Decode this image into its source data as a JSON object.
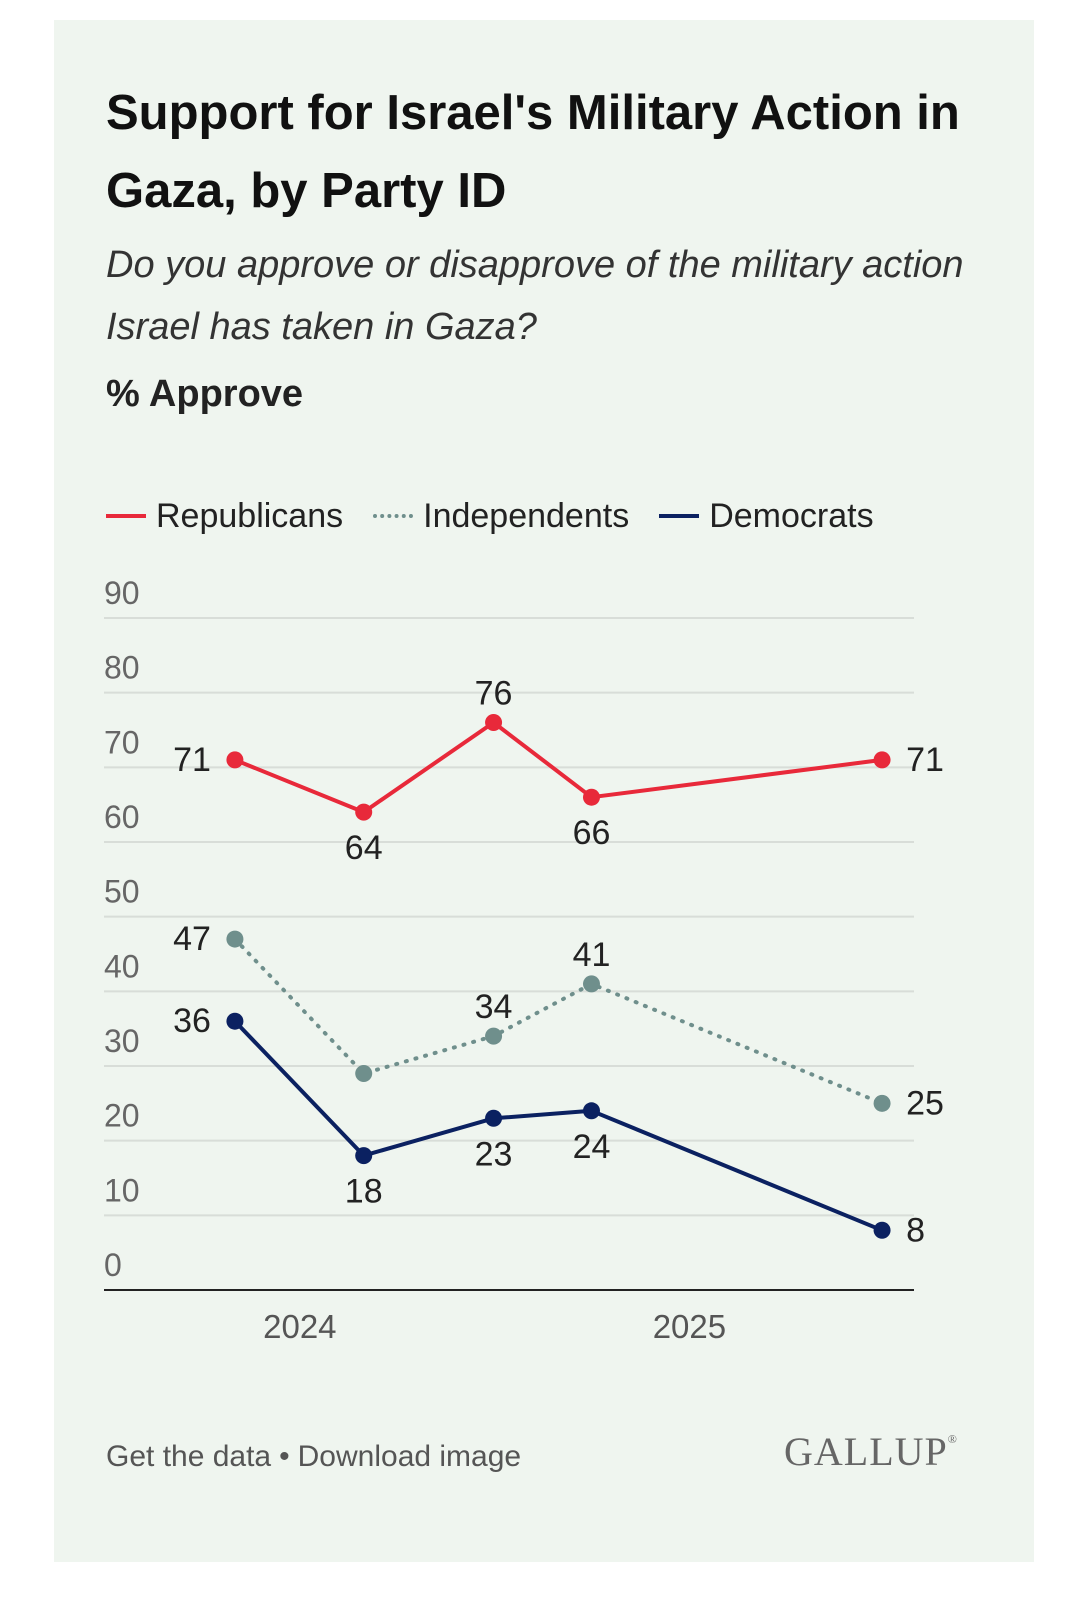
{
  "title": "Support for Israel's Military Action in Gaza, by Party ID",
  "question": "Do you approve or disapprove of the military action Israel has taken in Gaza?",
  "measure": "% Approve",
  "footer": {
    "get_data": "Get the data",
    "separator": "•",
    "download": "Download image"
  },
  "logo": {
    "text": "GALLUP",
    "mark": "®"
  },
  "colors": {
    "background": "#eff5ef",
    "republicans": "#e8293a",
    "independents": "#6f8f8c",
    "democrats": "#0b2161",
    "grid": "#d8ddd8"
  },
  "chart_data": {
    "type": "line",
    "title": "Support for Israel's Military Action in Gaza, by Party ID",
    "subtitle": "Do you approve or disapprove of the military action Israel has taken in Gaza?",
    "ylabel": "% Approve",
    "ylim": [
      0,
      90
    ],
    "yticks": [
      0,
      10,
      20,
      30,
      40,
      50,
      60,
      70,
      80,
      90
    ],
    "xlim": [
      "2023-07-01",
      "2025-07-31"
    ],
    "xtick_labels": [
      {
        "label": "2024",
        "date": "2024-01-01"
      },
      {
        "label": "2025",
        "date": "2025-01-01"
      }
    ],
    "grid": true,
    "legend_position": "top",
    "series": [
      {
        "name": "Republicans",
        "style": "solid",
        "color": "#e8293a",
        "points": [
          {
            "date": "2023-11-01",
            "value": 71
          },
          {
            "date": "2024-03-01",
            "value": 64
          },
          {
            "date": "2024-07-01",
            "value": 76
          },
          {
            "date": "2024-10-01",
            "value": 66
          },
          {
            "date": "2025-07-01",
            "value": 71
          }
        ]
      },
      {
        "name": "Independents",
        "style": "dotted",
        "color": "#6f8f8c",
        "points": [
          {
            "date": "2023-11-01",
            "value": 47
          },
          {
            "date": "2024-03-01",
            "value": 29
          },
          {
            "date": "2024-07-01",
            "value": 34
          },
          {
            "date": "2024-10-01",
            "value": 41
          },
          {
            "date": "2025-07-01",
            "value": 25
          }
        ]
      },
      {
        "name": "Democrats",
        "style": "solid",
        "color": "#0b2161",
        "points": [
          {
            "date": "2023-11-01",
            "value": 36
          },
          {
            "date": "2024-03-01",
            "value": 18
          },
          {
            "date": "2024-07-01",
            "value": 23
          },
          {
            "date": "2024-10-01",
            "value": 24
          },
          {
            "date": "2025-07-01",
            "value": 8
          }
        ]
      }
    ],
    "data_labels": [
      {
        "series": "Republicans",
        "index": 0,
        "text": "71",
        "pos": "left"
      },
      {
        "series": "Republicans",
        "index": 1,
        "text": "64",
        "pos": "below"
      },
      {
        "series": "Republicans",
        "index": 2,
        "text": "76",
        "pos": "above"
      },
      {
        "series": "Republicans",
        "index": 3,
        "text": "66",
        "pos": "below"
      },
      {
        "series": "Republicans",
        "index": 4,
        "text": "71",
        "pos": "right"
      },
      {
        "series": "Independents",
        "index": 0,
        "text": "47",
        "pos": "left"
      },
      {
        "series": "Independents",
        "index": 2,
        "text": "34",
        "pos": "above"
      },
      {
        "series": "Independents",
        "index": 3,
        "text": "41",
        "pos": "above"
      },
      {
        "series": "Independents",
        "index": 4,
        "text": "25",
        "pos": "right"
      },
      {
        "series": "Democrats",
        "index": 0,
        "text": "36",
        "pos": "left"
      },
      {
        "series": "Democrats",
        "index": 1,
        "text": "18",
        "pos": "below"
      },
      {
        "series": "Democrats",
        "index": 2,
        "text": "23",
        "pos": "below"
      },
      {
        "series": "Democrats",
        "index": 3,
        "text": "24",
        "pos": "below"
      },
      {
        "series": "Democrats",
        "index": 4,
        "text": "8",
        "pos": "right"
      }
    ]
  }
}
